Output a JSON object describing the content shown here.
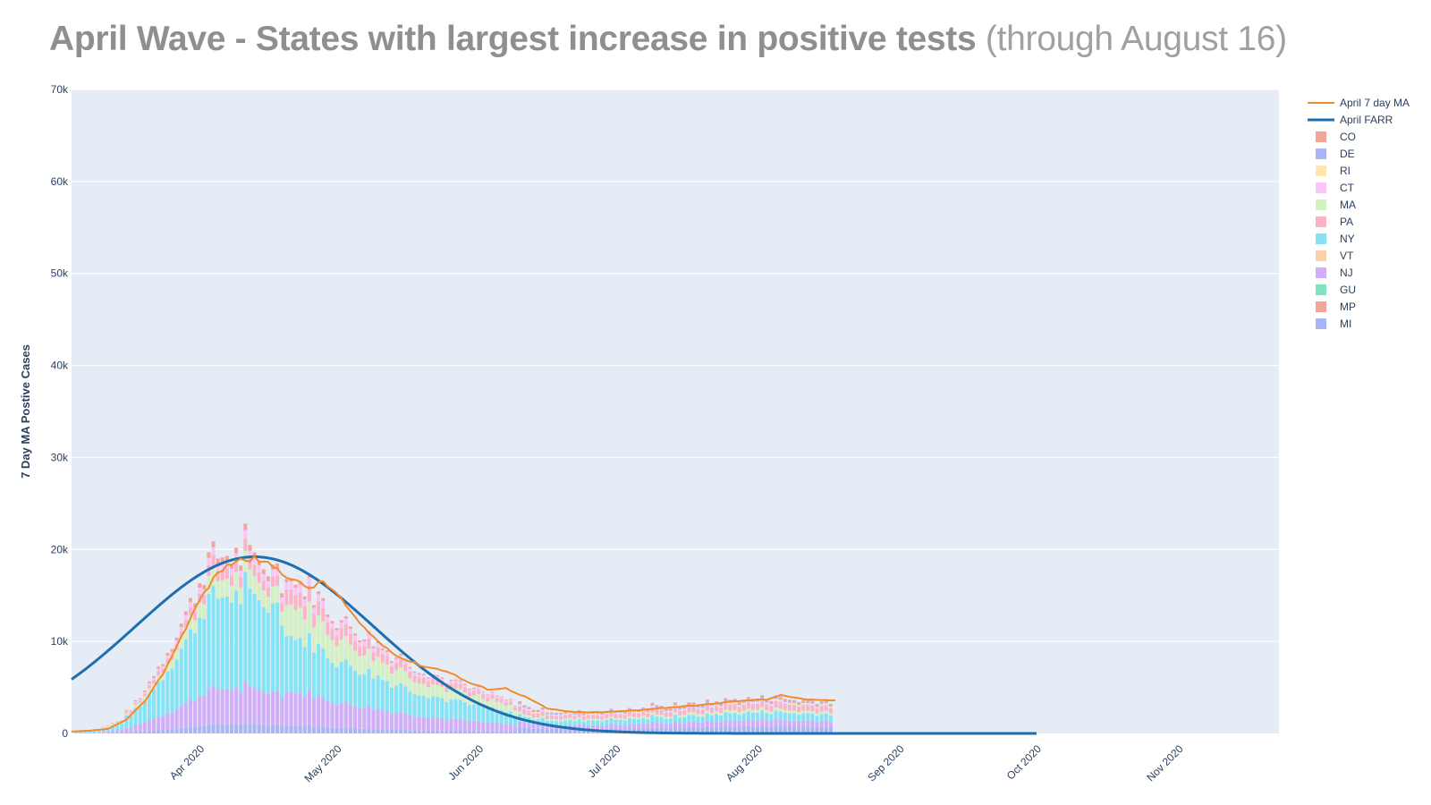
{
  "title": {
    "main": "April Wave - States with largest increase in positive tests",
    "sub": "(through August 16)"
  },
  "chart_data": {
    "type": "bar",
    "stacked": true,
    "ylabel": "7 Day MA Postive Cases",
    "xlabel": "",
    "ylim": [
      0,
      70000
    ],
    "y_ticks": [
      0,
      10000,
      20000,
      30000,
      40000,
      50000,
      60000,
      70000
    ],
    "y_tick_labels": [
      "0",
      "10k",
      "20k",
      "30k",
      "40k",
      "50k",
      "60k",
      "70k"
    ],
    "x_range": [
      "2020-03-04",
      "2020-11-23"
    ],
    "x_ticks": [
      "2020-04-01",
      "2020-05-01",
      "2020-06-01",
      "2020-07-01",
      "2020-08-01",
      "2020-09-01",
      "2020-10-01",
      "2020-11-01"
    ],
    "x_tick_labels": [
      "Apr 2020",
      "May 2020",
      "Jun 2020",
      "Jul 2020",
      "Aug 2020",
      "Sep 2020",
      "Oct 2020",
      "Nov 2020"
    ],
    "grid": true,
    "legend_position": "right",
    "bar_days": [
      "2020-03-05",
      "2020-08-17"
    ],
    "bar_total_points": [
      [
        "2020-03-05",
        300
      ],
      [
        "2020-03-10",
        500
      ],
      [
        "2020-03-15",
        1500
      ],
      [
        "2020-03-20",
        4500
      ],
      [
        "2020-03-25",
        9000
      ],
      [
        "2020-03-30",
        14000
      ],
      [
        "2020-04-03",
        19000
      ],
      [
        "2020-04-07",
        19500
      ],
      [
        "2020-04-11",
        19000
      ],
      [
        "2020-04-15",
        18500
      ],
      [
        "2020-04-20",
        16500
      ],
      [
        "2020-04-25",
        16000
      ],
      [
        "2020-05-01",
        12500
      ],
      [
        "2020-05-08",
        10500
      ],
      [
        "2020-05-15",
        8000
      ],
      [
        "2020-05-22",
        6500
      ],
      [
        "2020-05-29",
        5000
      ],
      [
        "2020-06-05",
        4000
      ],
      [
        "2020-06-12",
        2800
      ],
      [
        "2020-06-19",
        2300
      ],
      [
        "2020-06-26",
        2400
      ],
      [
        "2020-07-05",
        2600
      ],
      [
        "2020-07-15",
        3000
      ],
      [
        "2020-07-25",
        3600
      ],
      [
        "2020-08-03",
        3900
      ],
      [
        "2020-08-10",
        3600
      ],
      [
        "2020-08-17",
        3500
      ]
    ],
    "series": [
      {
        "name": "CO",
        "color": "#f4a49a"
      },
      {
        "name": "DE",
        "color": "#aab5f6"
      },
      {
        "name": "RI",
        "color": "#fde7ac"
      },
      {
        "name": "CT",
        "color": "#f9c6f6"
      },
      {
        "name": "MA",
        "color": "#d4f0c0"
      },
      {
        "name": "PA",
        "color": "#fbb4c6"
      },
      {
        "name": "NY",
        "color": "#84e3f4"
      },
      {
        "name": "VT",
        "color": "#fdcfaa"
      },
      {
        "name": "NJ",
        "color": "#d2aef8"
      },
      {
        "name": "GU",
        "color": "#7fe3c0"
      },
      {
        "name": "MP",
        "color": "#f4a49a"
      },
      {
        "name": "MI",
        "color": "#aab5f6"
      }
    ],
    "lines": [
      {
        "name": "April 7 day MA",
        "color": "#f28a2e",
        "points": [
          [
            "2020-03-04",
            200
          ],
          [
            "2020-03-08",
            300
          ],
          [
            "2020-03-12",
            500
          ],
          [
            "2020-03-16",
            1500
          ],
          [
            "2020-03-20",
            3500
          ],
          [
            "2020-03-24",
            6500
          ],
          [
            "2020-03-28",
            10500
          ],
          [
            "2020-04-01",
            14500
          ],
          [
            "2020-04-05",
            17500
          ],
          [
            "2020-04-09",
            18800
          ],
          [
            "2020-04-13",
            19000
          ],
          [
            "2020-04-17",
            18200
          ],
          [
            "2020-04-21",
            16800
          ],
          [
            "2020-04-25",
            15800
          ],
          [
            "2020-04-28",
            16500
          ],
          [
            "2020-05-01",
            15200
          ],
          [
            "2020-05-05",
            12500
          ],
          [
            "2020-05-10",
            10000
          ],
          [
            "2020-05-15",
            8200
          ],
          [
            "2020-05-20",
            7300
          ],
          [
            "2020-05-25",
            6800
          ],
          [
            "2020-05-30",
            5500
          ],
          [
            "2020-06-03",
            4800
          ],
          [
            "2020-06-07",
            4900
          ],
          [
            "2020-06-12",
            3800
          ],
          [
            "2020-06-16",
            2700
          ],
          [
            "2020-06-22",
            2300
          ],
          [
            "2020-06-28",
            2300
          ],
          [
            "2020-07-05",
            2500
          ],
          [
            "2020-07-12",
            2800
          ],
          [
            "2020-07-20",
            3100
          ],
          [
            "2020-07-27",
            3500
          ],
          [
            "2020-08-03",
            3700
          ],
          [
            "2020-08-06",
            4200
          ],
          [
            "2020-08-10",
            3800
          ],
          [
            "2020-08-14",
            3600
          ],
          [
            "2020-08-18",
            3600
          ]
        ]
      },
      {
        "name": "April FARR",
        "color": "#1f6fad",
        "peak_date": "2020-04-13",
        "peak_value": 19200,
        "spread_days": 26,
        "end_date": "2020-10-01"
      }
    ]
  }
}
